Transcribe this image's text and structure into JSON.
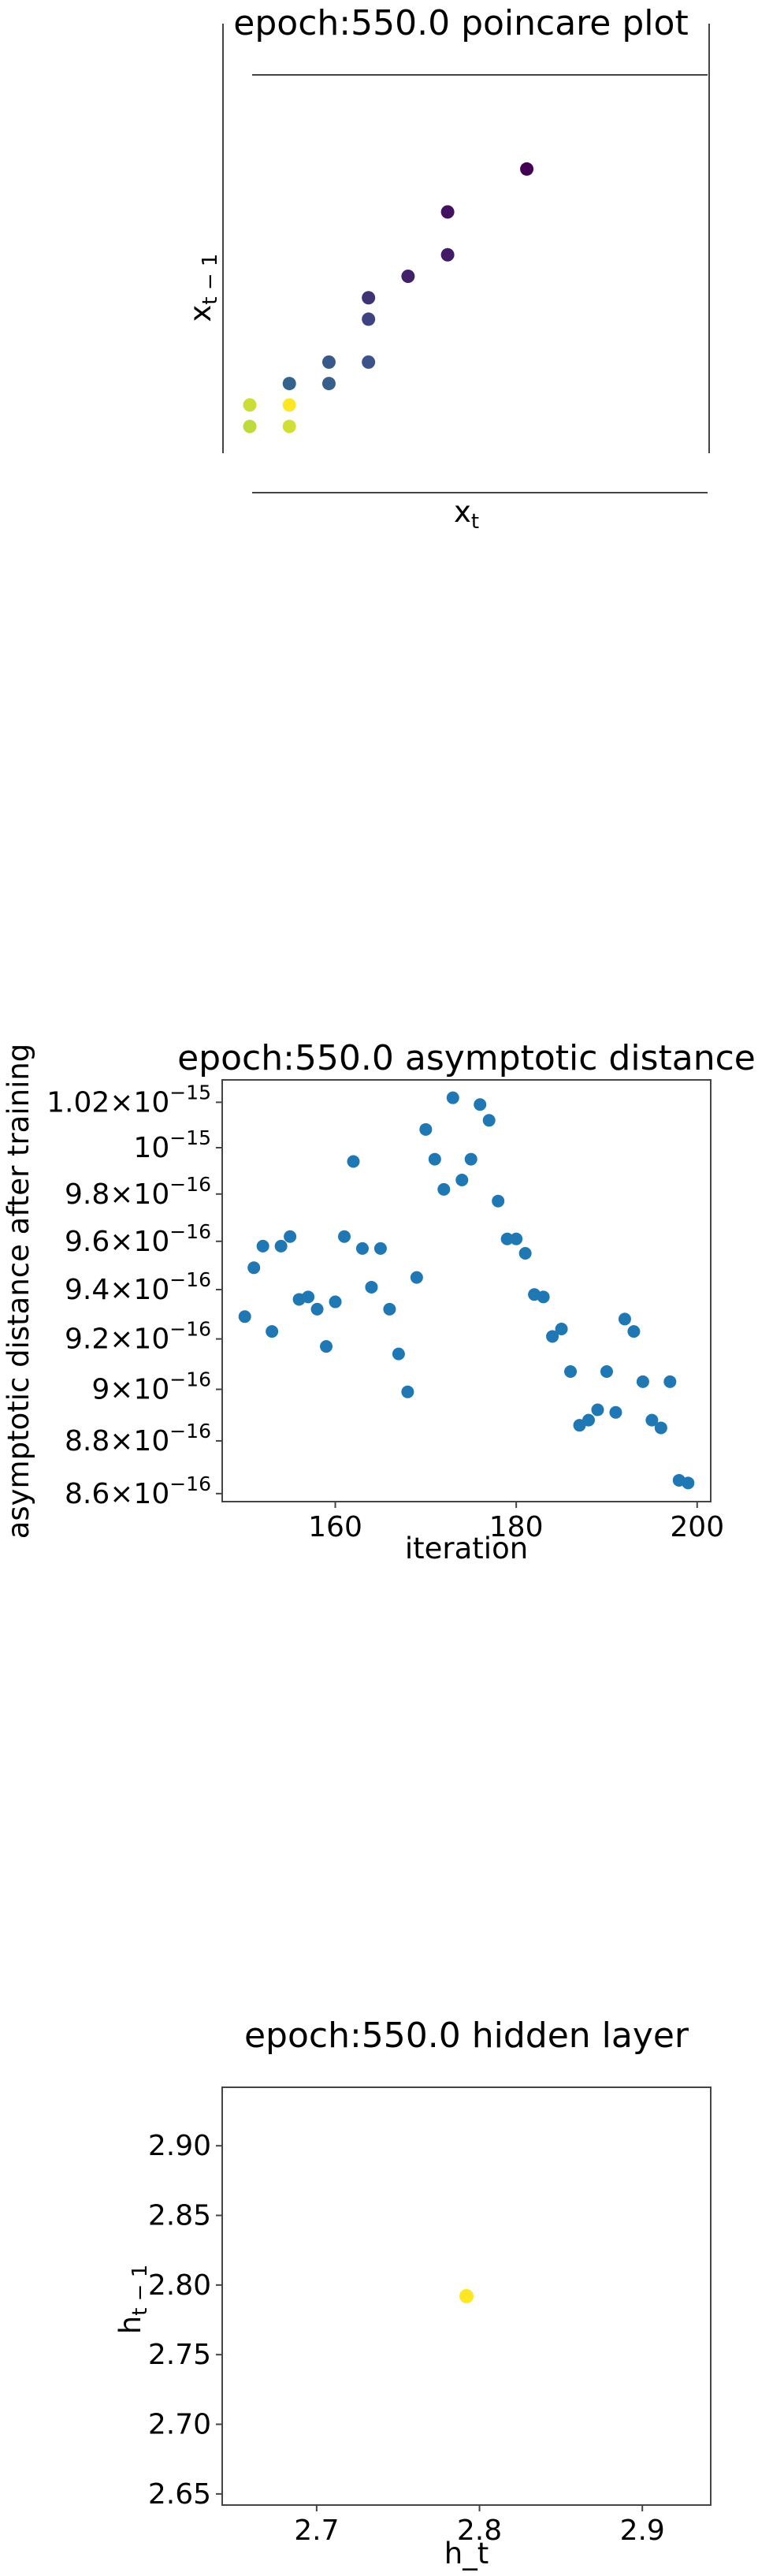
{
  "chart_data": [
    {
      "type": "scatter",
      "title": "epoch:550.0 poincare plot",
      "xlabel": "x_t",
      "ylabel": "x_{t-1}",
      "xlim": [
        0,
        9
      ],
      "ylim": [
        0,
        7
      ],
      "grid": false,
      "ticks_hidden": true,
      "colormap": "viridis",
      "points": [
        {
          "x": 7.0,
          "y": 6.0,
          "c": 0.0
        },
        {
          "x": 5.0,
          "y": 5.0,
          "c": 0.05
        },
        {
          "x": 5.0,
          "y": 4.0,
          "c": 0.08
        },
        {
          "x": 4.0,
          "y": 3.5,
          "c": 0.1
        },
        {
          "x": 3.0,
          "y": 3.0,
          "c": 0.15
        },
        {
          "x": 3.0,
          "y": 2.5,
          "c": 0.2
        },
        {
          "x": 3.0,
          "y": 1.5,
          "c": 0.25
        },
        {
          "x": 2.0,
          "y": 1.5,
          "c": 0.28
        },
        {
          "x": 2.0,
          "y": 1.0,
          "c": 0.3
        },
        {
          "x": 1.0,
          "y": 1.0,
          "c": 0.32
        },
        {
          "x": 0.0,
          "y": 0.5,
          "c": 0.92
        },
        {
          "x": 1.0,
          "y": 0.5,
          "c": 1.0
        },
        {
          "x": 0.0,
          "y": 0.0,
          "c": 0.9
        },
        {
          "x": 1.0,
          "y": 0.0,
          "c": 0.93
        }
      ]
    },
    {
      "type": "scatter",
      "title": "epoch:550.0 asymptotic distance",
      "xlabel": "iteration",
      "ylabel": "asymptotic distance after training",
      "xlim": [
        147.5,
        201.5
      ],
      "ylim": [
        8.57e-16,
        1.03e-15
      ],
      "yscale": "log",
      "grid": false,
      "color": "#1f77b4",
      "xticks": [
        160,
        180,
        200
      ],
      "yticks": [
        {
          "value": 1.02e-15,
          "mantissa": "1.02",
          "exponent": "−15"
        },
        {
          "value": 1e-15,
          "mantissa": "",
          "exponent": "−15"
        },
        {
          "value": 9.8e-16,
          "mantissa": "9.8",
          "exponent": "−16"
        },
        {
          "value": 9.6e-16,
          "mantissa": "9.6",
          "exponent": "−16"
        },
        {
          "value": 9.4e-16,
          "mantissa": "9.4",
          "exponent": "−16"
        },
        {
          "value": 9.2e-16,
          "mantissa": "9.2",
          "exponent": "−16"
        },
        {
          "value": 9e-16,
          "mantissa": "9",
          "exponent": "−16"
        },
        {
          "value": 8.8e-16,
          "mantissa": "8.8",
          "exponent": "−16"
        },
        {
          "value": 8.6e-16,
          "mantissa": "8.6",
          "exponent": "−16"
        }
      ],
      "x": [
        150,
        151,
        152,
        153,
        154,
        155,
        156,
        157,
        158,
        159,
        160,
        161,
        162,
        163,
        164,
        165,
        166,
        167,
        168,
        169,
        170,
        171,
        172,
        173,
        174,
        175,
        176,
        177,
        178,
        179,
        180,
        181,
        182,
        183,
        184,
        185,
        186,
        187,
        188,
        189,
        190,
        191,
        192,
        193,
        194,
        195,
        196,
        197,
        198,
        199
      ],
      "y": [
        9.29e-16,
        9.49e-16,
        9.58e-16,
        9.23e-16,
        9.58e-16,
        9.62e-16,
        9.36e-16,
        9.37e-16,
        9.32e-16,
        9.17e-16,
        9.35e-16,
        9.62e-16,
        9.94e-16,
        9.57e-16,
        9.41e-16,
        9.57e-16,
        9.32e-16,
        9.14e-16,
        8.99e-16,
        9.45e-16,
        1.008e-15,
        9.95e-16,
        9.82e-16,
        1.022e-15,
        9.86e-16,
        9.95e-16,
        1.019e-15,
        1.012e-15,
        9.77e-16,
        9.61e-16,
        9.61e-16,
        9.55e-16,
        9.38e-16,
        9.37e-16,
        9.21e-16,
        9.24e-16,
        9.07e-16,
        8.86e-16,
        8.88e-16,
        8.92e-16,
        9.07e-16,
        8.91e-16,
        9.28e-16,
        9.23e-16,
        9.03e-16,
        8.88e-16,
        8.85e-16,
        9.03e-16,
        8.65e-16,
        8.64e-16
      ]
    },
    {
      "type": "scatter",
      "title": "epoch:550.0 hidden layer",
      "xlabel": "h_t",
      "ylabel": "h_{t-1}",
      "xlim": [
        2.642,
        2.942
      ],
      "ylim": [
        2.642,
        2.942
      ],
      "grid": false,
      "xticks": [
        2.7,
        2.8,
        2.9
      ],
      "yticks": [
        2.65,
        2.7,
        2.75,
        2.8,
        2.85,
        2.9
      ],
      "points": [
        {
          "x": 2.792,
          "y": 2.792,
          "color": "#fde725"
        }
      ]
    }
  ]
}
